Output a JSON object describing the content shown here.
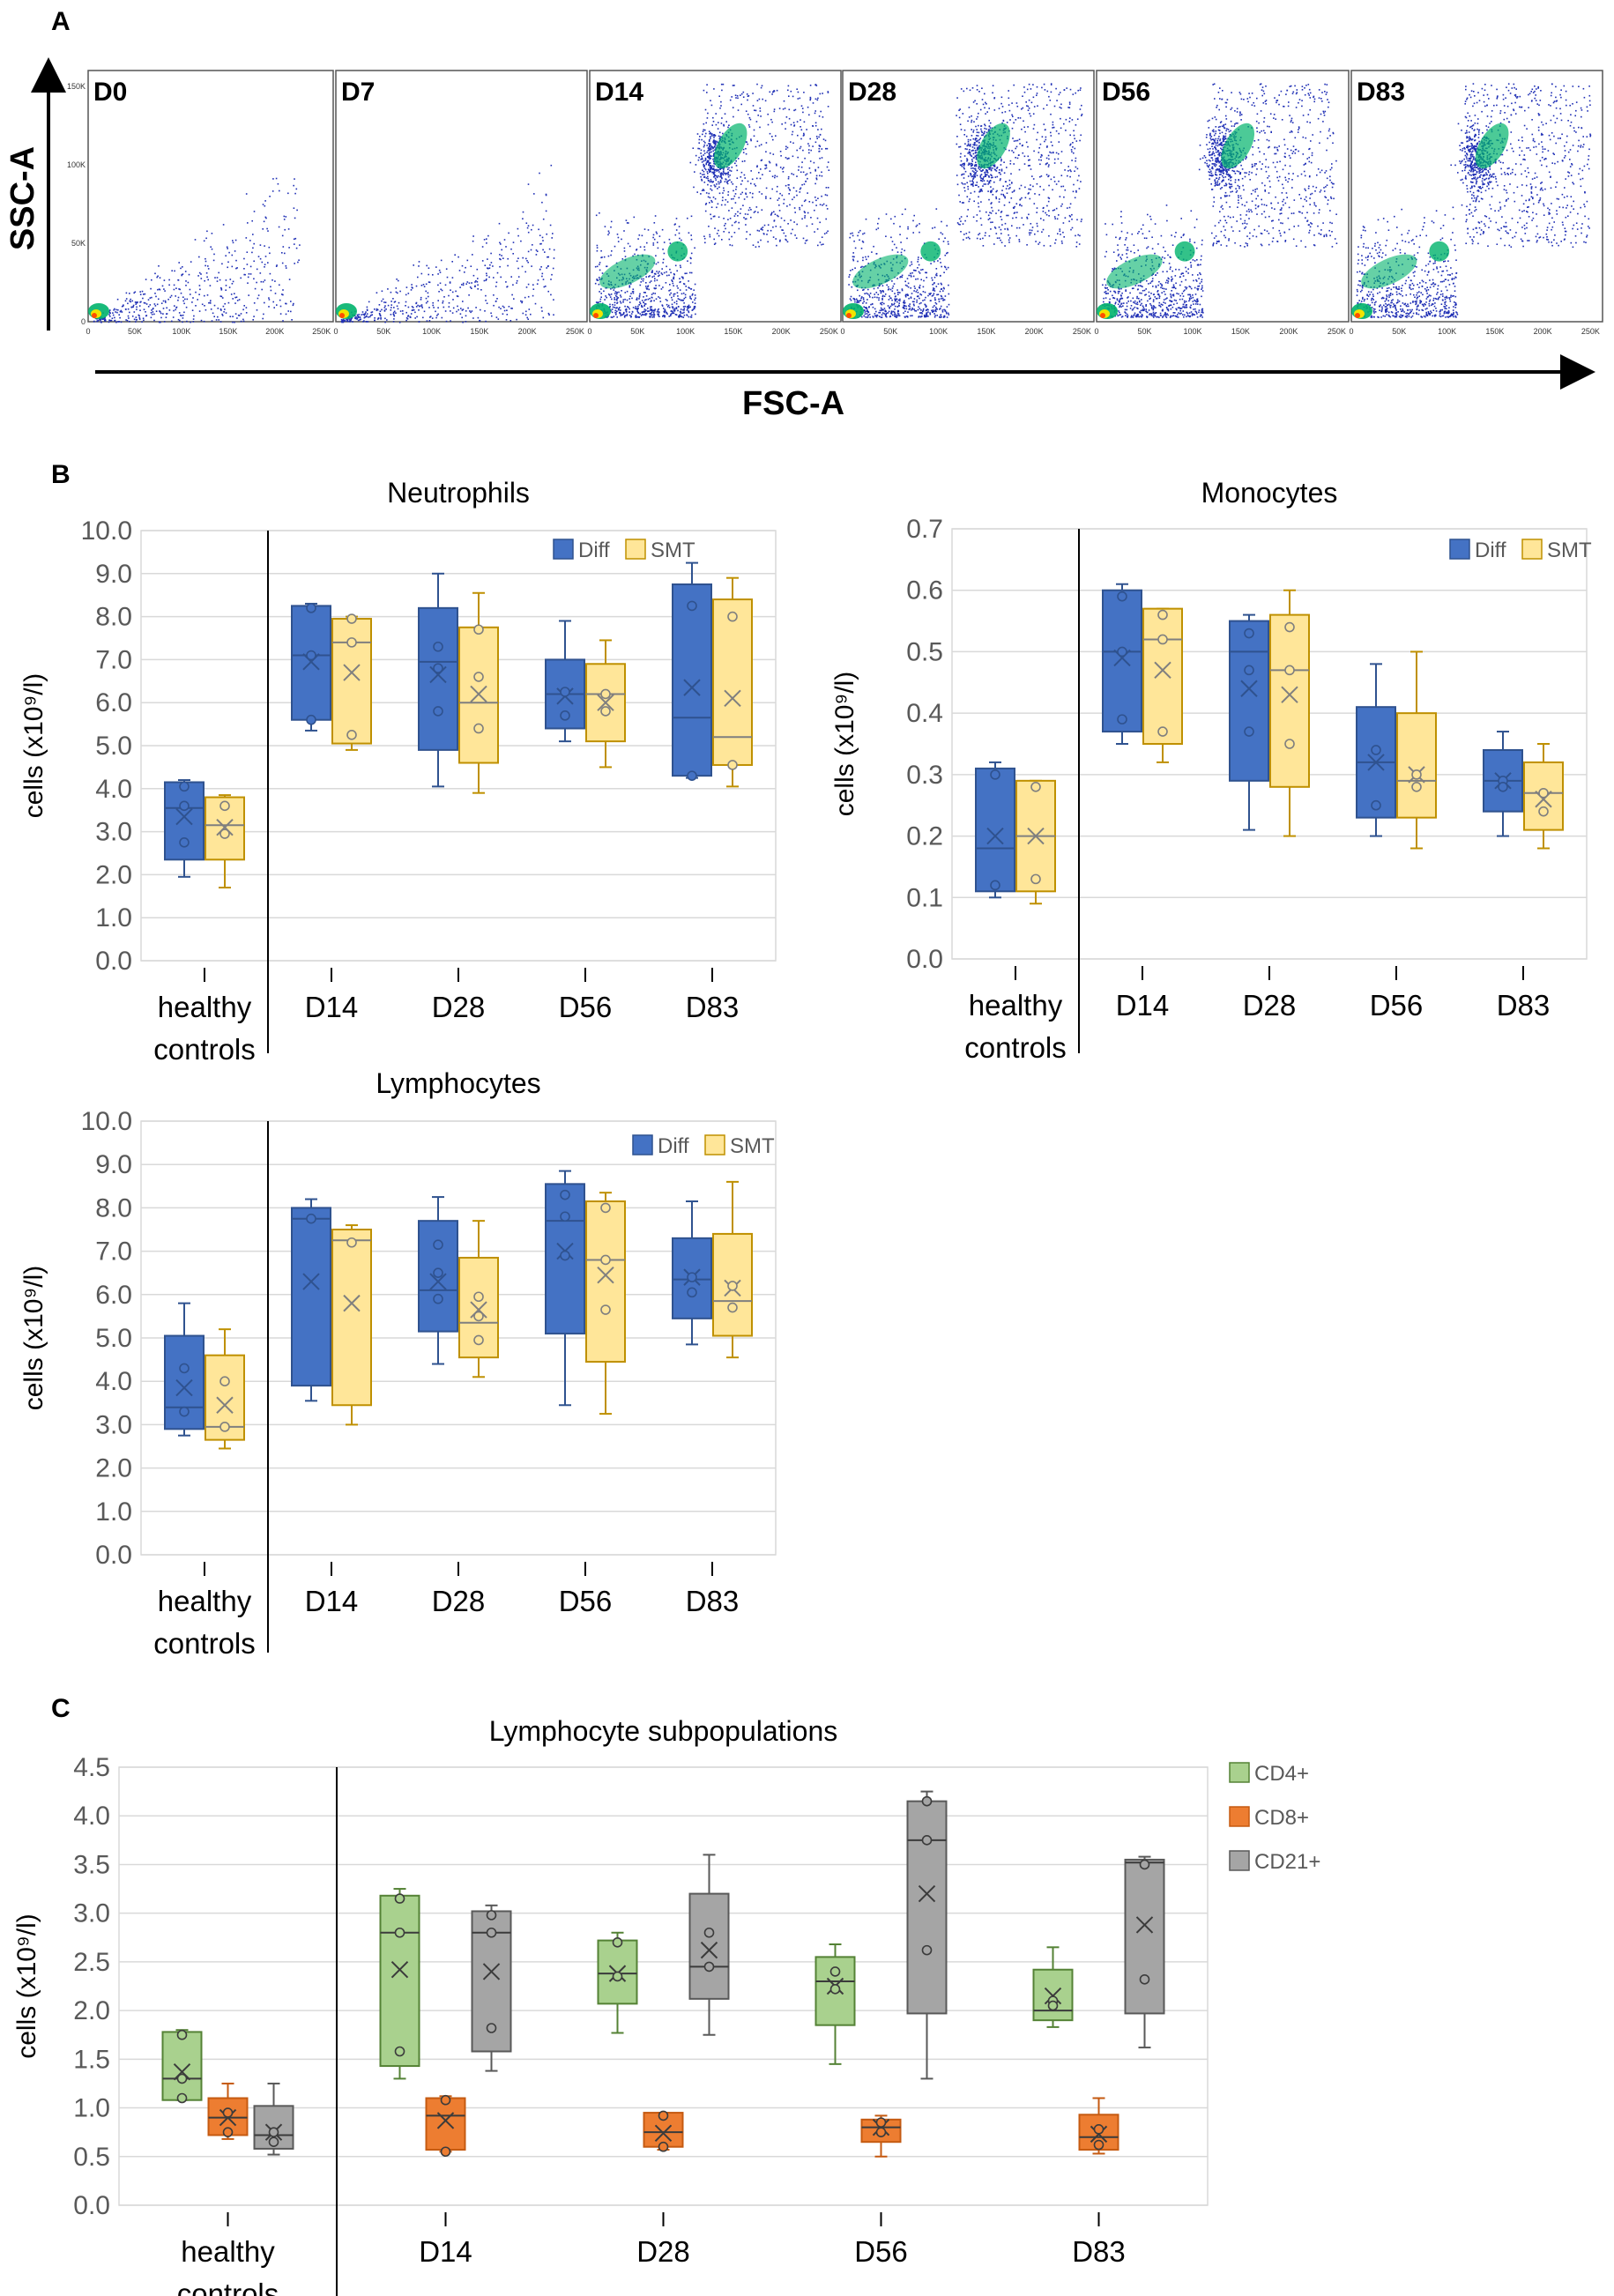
{
  "panels": {
    "a": "A",
    "b": "B",
    "c": "C"
  },
  "flow": {
    "xaxis": "FSC-A",
    "yaxis": "SSC-A",
    "yticks": [
      "0",
      "50K",
      "100K",
      "150K"
    ],
    "xticks": [
      "0",
      "50K",
      "100K",
      "150K",
      "200K",
      "250K"
    ],
    "plots": [
      {
        "label": "D0",
        "granularity": "low"
      },
      {
        "label": "D7",
        "granularity": "low"
      },
      {
        "label": "D14",
        "granularity": "high"
      },
      {
        "label": "D28",
        "granularity": "high"
      },
      {
        "label": "D56",
        "granularity": "high"
      },
      {
        "label": "D83",
        "granularity": "high"
      }
    ],
    "colors": {
      "dots": "#1f2fb5",
      "core1": "#00b36b",
      "core2": "#f2e400",
      "core3": "#ff4d00"
    }
  },
  "chart_data": [
    {
      "type": "box",
      "title": "Neutrophils",
      "ylabel": "cells (x10⁹/l)",
      "ylim": [
        0,
        10
      ],
      "yticks": [
        "0.0",
        "1.0",
        "2.0",
        "3.0",
        "4.0",
        "5.0",
        "6.0",
        "7.0",
        "8.0",
        "9.0",
        "10.0"
      ],
      "categories": [
        "healthy controls",
        "D14",
        "D28",
        "D56",
        "D83"
      ],
      "legend": [
        {
          "name": "Diff",
          "color": "#4472c4"
        },
        {
          "name": "SMT",
          "color": "#ffe699"
        }
      ],
      "series": [
        {
          "name": "Diff",
          "boxes": [
            {
              "min": 1.95,
              "q1": 2.35,
              "median": 3.55,
              "q3": 4.15,
              "max": 4.2,
              "mean": 3.35,
              "points": [
                3.6,
                4.05,
                2.75
              ]
            },
            {
              "min": 5.35,
              "q1": 5.6,
              "median": 7.1,
              "q3": 8.25,
              "max": 8.3,
              "mean": 6.95,
              "points": [
                8.2,
                7.1,
                5.6
              ]
            },
            {
              "min": 4.05,
              "q1": 4.9,
              "median": 6.95,
              "q3": 8.2,
              "max": 9.0,
              "mean": 6.65,
              "points": [
                7.3,
                6.8,
                5.8
              ]
            },
            {
              "min": 5.1,
              "q1": 5.4,
              "median": 6.2,
              "q3": 7.0,
              "max": 7.9,
              "mean": 6.15,
              "points": [
                6.25,
                5.7
              ]
            },
            {
              "min": 4.25,
              "q1": 4.3,
              "median": 5.65,
              "q3": 8.75,
              "max": 9.25,
              "mean": 6.35,
              "points": [
                8.25,
                4.3
              ]
            }
          ]
        },
        {
          "name": "SMT",
          "boxes": [
            {
              "min": 1.7,
              "q1": 2.35,
              "median": 3.15,
              "q3": 3.8,
              "max": 3.85,
              "mean": 3.1,
              "points": [
                3.6,
                2.95
              ]
            },
            {
              "min": 4.9,
              "q1": 5.05,
              "median": 7.4,
              "q3": 7.95,
              "max": 8.0,
              "mean": 6.7,
              "points": [
                7.95,
                7.4,
                5.25
              ]
            },
            {
              "min": 3.9,
              "q1": 4.6,
              "median": 6.0,
              "q3": 7.75,
              "max": 8.55,
              "mean": 6.2,
              "points": [
                7.7,
                6.6,
                5.4
              ]
            },
            {
              "min": 4.5,
              "q1": 5.1,
              "median": 6.2,
              "q3": 6.9,
              "max": 7.45,
              "mean": 6.0,
              "points": [
                6.2,
                5.8
              ]
            },
            {
              "min": 4.05,
              "q1": 4.55,
              "median": 5.2,
              "q3": 8.4,
              "max": 8.9,
              "mean": 6.1,
              "points": [
                8.0,
                4.55
              ]
            }
          ]
        }
      ]
    },
    {
      "type": "box",
      "title": "Monocytes",
      "ylabel": "cells (x10⁹/l)",
      "ylim": [
        0,
        0.7
      ],
      "yticks": [
        "0.0",
        "0.1",
        "0.2",
        "0.3",
        "0.4",
        "0.5",
        "0.6",
        "0.7"
      ],
      "categories": [
        "healthy controls",
        "D14",
        "D28",
        "D56",
        "D83"
      ],
      "legend": [
        {
          "name": "Diff",
          "color": "#4472c4"
        },
        {
          "name": "SMT",
          "color": "#ffe699"
        }
      ],
      "series": [
        {
          "name": "Diff",
          "boxes": [
            {
              "min": 0.1,
              "q1": 0.11,
              "median": 0.18,
              "q3": 0.31,
              "max": 0.32,
              "mean": 0.2,
              "points": [
                0.3,
                0.12
              ]
            },
            {
              "min": 0.35,
              "q1": 0.37,
              "median": 0.5,
              "q3": 0.6,
              "max": 0.61,
              "mean": 0.49,
              "points": [
                0.59,
                0.5,
                0.39
              ]
            },
            {
              "min": 0.21,
              "q1": 0.29,
              "median": 0.5,
              "q3": 0.55,
              "max": 0.56,
              "mean": 0.44,
              "points": [
                0.53,
                0.47,
                0.37
              ]
            },
            {
              "min": 0.2,
              "q1": 0.23,
              "median": 0.32,
              "q3": 0.41,
              "max": 0.48,
              "mean": 0.32,
              "points": [
                0.34,
                0.25
              ]
            },
            {
              "min": 0.2,
              "q1": 0.24,
              "median": 0.29,
              "q3": 0.34,
              "max": 0.37,
              "mean": 0.29,
              "points": [
                0.29,
                0.28
              ]
            }
          ]
        },
        {
          "name": "SMT",
          "boxes": [
            {
              "min": 0.09,
              "q1": 0.11,
              "median": 0.2,
              "q3": 0.29,
              "max": 0.29,
              "mean": 0.2,
              "points": [
                0.28,
                0.13
              ]
            },
            {
              "min": 0.32,
              "q1": 0.35,
              "median": 0.52,
              "q3": 0.57,
              "max": 0.57,
              "mean": 0.47,
              "points": [
                0.56,
                0.52,
                0.37
              ]
            },
            {
              "min": 0.2,
              "q1": 0.28,
              "median": 0.47,
              "q3": 0.56,
              "max": 0.6,
              "mean": 0.43,
              "points": [
                0.54,
                0.47,
                0.35
              ]
            },
            {
              "min": 0.18,
              "q1": 0.23,
              "median": 0.29,
              "q3": 0.4,
              "max": 0.5,
              "mean": 0.3,
              "points": [
                0.3,
                0.28
              ]
            },
            {
              "min": 0.18,
              "q1": 0.21,
              "median": 0.27,
              "q3": 0.32,
              "max": 0.35,
              "mean": 0.26,
              "points": [
                0.27,
                0.24
              ]
            }
          ]
        }
      ]
    },
    {
      "type": "box",
      "title": "Lymphocytes",
      "ylabel": "cells (x10⁹/l)",
      "ylim": [
        0,
        10
      ],
      "yticks": [
        "0.0",
        "1.0",
        "2.0",
        "3.0",
        "4.0",
        "5.0",
        "6.0",
        "7.0",
        "8.0",
        "9.0",
        "10.0"
      ],
      "categories": [
        "healthy controls",
        "D14",
        "D28",
        "D56",
        "D83"
      ],
      "legend": [
        {
          "name": "Diff",
          "color": "#4472c4"
        },
        {
          "name": "SMT",
          "color": "#ffe699"
        }
      ],
      "series": [
        {
          "name": "Diff",
          "boxes": [
            {
              "min": 2.75,
              "q1": 2.9,
              "median": 3.4,
              "q3": 5.05,
              "max": 5.8,
              "mean": 3.85,
              "points": [
                4.3,
                3.3
              ]
            },
            {
              "min": 3.55,
              "q1": 3.9,
              "median": 7.75,
              "q3": 8.0,
              "max": 8.2,
              "mean": 6.3,
              "points": [
                7.75
              ]
            },
            {
              "min": 4.4,
              "q1": 5.15,
              "median": 6.1,
              "q3": 7.7,
              "max": 8.25,
              "mean": 6.3,
              "points": [
                7.15,
                6.5,
                5.9
              ]
            },
            {
              "min": 3.45,
              "q1": 5.1,
              "median": 7.7,
              "q3": 8.55,
              "max": 8.85,
              "mean": 7.0,
              "points": [
                8.3,
                7.8,
                6.9
              ]
            },
            {
              "min": 4.85,
              "q1": 5.45,
              "median": 6.35,
              "q3": 7.3,
              "max": 8.15,
              "mean": 6.4,
              "points": [
                6.4,
                6.05
              ]
            }
          ]
        },
        {
          "name": "SMT",
          "boxes": [
            {
              "min": 2.45,
              "q1": 2.65,
              "median": 2.95,
              "q3": 4.6,
              "max": 5.2,
              "mean": 3.45,
              "points": [
                4.0,
                2.95
              ]
            },
            {
              "min": 3.0,
              "q1": 3.45,
              "median": 7.25,
              "q3": 7.5,
              "max": 7.6,
              "mean": 5.8,
              "points": [
                7.2
              ]
            },
            {
              "min": 4.1,
              "q1": 4.55,
              "median": 5.35,
              "q3": 6.85,
              "max": 7.7,
              "mean": 5.65,
              "points": [
                5.95,
                5.5,
                4.95
              ]
            },
            {
              "min": 3.25,
              "q1": 4.45,
              "median": 6.8,
              "q3": 8.15,
              "max": 8.35,
              "mean": 6.45,
              "points": [
                8.0,
                6.8,
                5.65
              ]
            },
            {
              "min": 4.55,
              "q1": 5.05,
              "median": 5.85,
              "q3": 7.4,
              "max": 8.6,
              "mean": 6.15,
              "points": [
                6.2,
                5.7
              ]
            }
          ]
        }
      ]
    },
    {
      "type": "box",
      "title": "Lymphocyte subpopulations",
      "ylabel": "cells (x10⁹/l)",
      "ylim": [
        0,
        4.5
      ],
      "yticks": [
        "0.0",
        "0.5",
        "1.0",
        "1.5",
        "2.0",
        "2.5",
        "3.0",
        "3.5",
        "4.0",
        "4.5"
      ],
      "categories": [
        "healthy controls",
        "D14",
        "D28",
        "D56",
        "D83"
      ],
      "legend": [
        {
          "name": "CD4+",
          "color": "#a9d18e"
        },
        {
          "name": "CD8+",
          "color": "#ed7d31"
        },
        {
          "name": "CD21+",
          "color": "#a5a5a5"
        }
      ],
      "series": [
        {
          "name": "CD4+",
          "boxes": [
            {
              "min": 1.08,
              "q1": 1.08,
              "median": 1.3,
              "q3": 1.78,
              "max": 1.8,
              "mean": 1.37,
              "points": [
                1.75,
                1.3,
                1.1
              ]
            },
            {
              "min": 1.3,
              "q1": 1.43,
              "median": 2.8,
              "q3": 3.18,
              "max": 3.25,
              "mean": 2.42,
              "points": [
                3.15,
                2.8,
                1.58
              ]
            },
            {
              "min": 1.77,
              "q1": 2.07,
              "median": 2.38,
              "q3": 2.72,
              "max": 2.8,
              "mean": 2.38,
              "points": [
                2.7,
                2.35
              ]
            },
            {
              "min": 1.45,
              "q1": 1.85,
              "median": 2.3,
              "q3": 2.55,
              "max": 2.68,
              "mean": 2.25,
              "points": [
                2.4,
                2.22
              ]
            },
            {
              "min": 1.83,
              "q1": 1.9,
              "median": 2.0,
              "q3": 2.42,
              "max": 2.65,
              "mean": 2.15,
              "points": [
                2.1,
                2.05
              ]
            }
          ]
        },
        {
          "name": "CD8+",
          "boxes": [
            {
              "min": 0.68,
              "q1": 0.72,
              "median": 0.9,
              "q3": 1.1,
              "max": 1.25,
              "mean": 0.9,
              "points": [
                0.95,
                0.75
              ]
            },
            {
              "min": 0.55,
              "q1": 0.57,
              "median": 0.92,
              "q3": 1.1,
              "max": 1.12,
              "mean": 0.87,
              "points": [
                1.08,
                0.55
              ]
            },
            {
              "min": 0.57,
              "q1": 0.6,
              "median": 0.75,
              "q3": 0.95,
              "max": 0.95,
              "mean": 0.74,
              "points": [
                0.92,
                0.6
              ]
            },
            {
              "min": 0.5,
              "q1": 0.65,
              "median": 0.8,
              "q3": 0.88,
              "max": 0.92,
              "mean": 0.8,
              "points": [
                0.85,
                0.75
              ]
            },
            {
              "min": 0.53,
              "q1": 0.57,
              "median": 0.7,
              "q3": 0.93,
              "max": 1.1,
              "mean": 0.73,
              "points": [
                0.78,
                0.62
              ]
            }
          ]
        },
        {
          "name": "CD21+",
          "boxes": [
            {
              "min": 0.52,
              "q1": 0.58,
              "median": 0.72,
              "q3": 1.02,
              "max": 1.25,
              "mean": 0.75,
              "points": [
                0.75,
                0.65
              ]
            },
            {
              "min": 1.38,
              "q1": 1.58,
              "median": 2.8,
              "q3": 3.02,
              "max": 3.08,
              "mean": 2.4,
              "points": [
                2.98,
                2.8,
                1.82
              ]
            },
            {
              "min": 1.75,
              "q1": 2.12,
              "median": 2.45,
              "q3": 3.2,
              "max": 3.6,
              "mean": 2.62,
              "points": [
                2.8,
                2.45
              ]
            },
            {
              "min": 1.3,
              "q1": 1.97,
              "median": 3.75,
              "q3": 4.15,
              "max": 4.25,
              "mean": 3.2,
              "points": [
                4.15,
                3.75,
                2.62
              ]
            },
            {
              "min": 1.62,
              "q1": 1.97,
              "median": 3.52,
              "q3": 3.55,
              "max": 3.58,
              "mean": 2.88,
              "points": [
                3.5,
                2.32
              ]
            }
          ]
        }
      ]
    }
  ]
}
